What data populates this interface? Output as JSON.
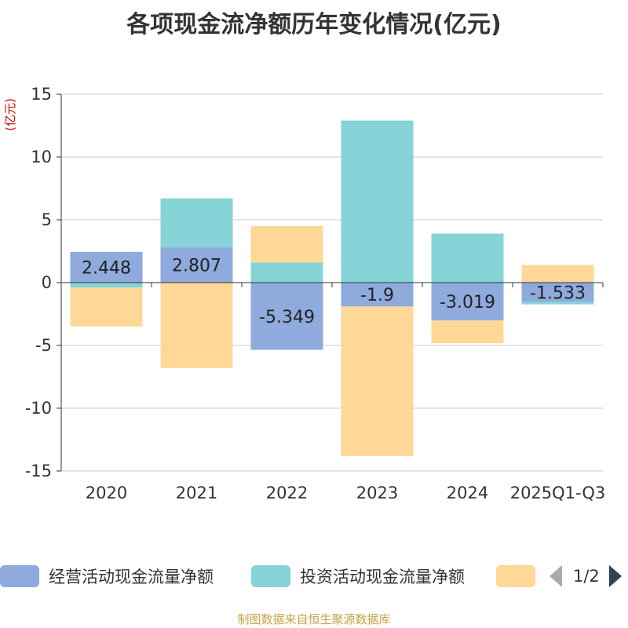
{
  "chart_data": {
    "type": "bar",
    "stacked": true,
    "title": "各项现金流净额历年变化情况(亿元)",
    "ylabel": "(亿元)",
    "xlabel": "",
    "ylim": [
      -15,
      15
    ],
    "yticks": [
      15,
      10,
      5,
      0,
      -5,
      -10,
      -15
    ],
    "categories": [
      "2020",
      "2021",
      "2022",
      "2023",
      "2024",
      "2025Q1-Q3"
    ],
    "series": [
      {
        "name": "经营活动现金流量净额",
        "color": "#8faadc",
        "values": [
          2.448,
          2.807,
          -5.349,
          -1.9,
          -3.019,
          -1.533
        ],
        "labels": [
          "2.448",
          "2.807",
          "-5.349",
          "-1.9",
          "-3.019",
          "-1.533"
        ]
      },
      {
        "name": "投资活动现金流量净额",
        "color": "#86d4d8",
        "values": [
          -0.4,
          3.9,
          1.6,
          12.9,
          3.9,
          -0.2
        ]
      },
      {
        "name": "",
        "color": "#ffd898",
        "values": [
          -3.1,
          -6.8,
          2.9,
          -11.9,
          -1.8,
          1.4
        ]
      }
    ],
    "grid": true,
    "legend_position": "bottom"
  },
  "legend": {
    "page": "1/2"
  },
  "source": "制图数据来自恒生聚源数据库"
}
